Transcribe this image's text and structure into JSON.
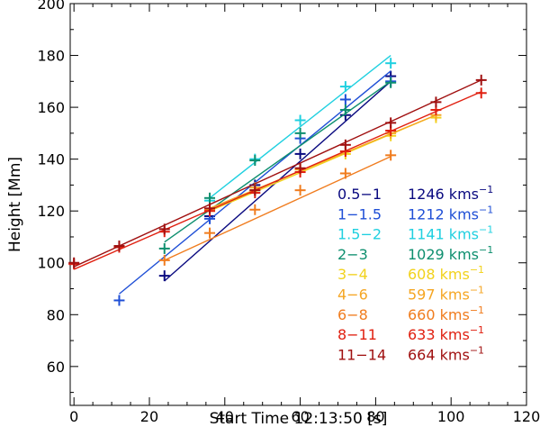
{
  "chart_data": {
    "type": "scatter",
    "xlabel": "Start Time 12:13:50 [s]",
    "ylabel": "Height [Mm]",
    "xlim": [
      -1,
      120
    ],
    "ylim": [
      45,
      200
    ],
    "xticks": [
      0,
      20,
      40,
      60,
      80,
      100,
      120
    ],
    "yticks": [
      60,
      80,
      100,
      120,
      140,
      160,
      180,
      200
    ],
    "series": [
      {
        "name": "0.5−1",
        "speed": "1246 kms",
        "unit_exp": "−1",
        "color": "#0a0a80",
        "points": [
          [
            24,
            95
          ],
          [
            36,
            118
          ],
          [
            48,
            130
          ],
          [
            60,
            142
          ],
          [
            72,
            157
          ],
          [
            84,
            172
          ]
        ],
        "fit": [
          [
            24,
            93
          ],
          [
            84,
            170
          ]
        ]
      },
      {
        "name": "1−1.5",
        "speed": "1212 kms",
        "unit_exp": "−1",
        "color": "#1f4fd6",
        "points": [
          [
            12,
            85.5
          ],
          [
            36,
            117
          ],
          [
            48,
            128
          ],
          [
            60,
            148
          ],
          [
            72,
            163
          ],
          [
            84,
            170
          ]
        ],
        "fit": [
          [
            12,
            88
          ],
          [
            84,
            174
          ]
        ]
      },
      {
        "name": "1.5−2",
        "speed": "1141 kms",
        "unit_exp": "−1",
        "color": "#20d0e0",
        "points": [
          [
            36,
            124
          ],
          [
            48,
            140
          ],
          [
            60,
            155
          ],
          [
            72,
            168
          ],
          [
            84,
            177
          ]
        ],
        "fit": [
          [
            36,
            125
          ],
          [
            84,
            180
          ]
        ]
      },
      {
        "name": "2−3",
        "speed": "1029 kms",
        "unit_exp": "−1",
        "color": "#0e8f6f",
        "points": [
          [
            24,
            105.5
          ],
          [
            36,
            125
          ],
          [
            48,
            139.5
          ],
          [
            60,
            150
          ],
          [
            72,
            159
          ],
          [
            84,
            169.5
          ]
        ],
        "fit": [
          [
            24,
            108
          ],
          [
            84,
            170
          ]
        ]
      },
      {
        "name": "3−4",
        "speed": "608 kms",
        "unit_exp": "−1",
        "color": "#f2d21c",
        "points": [
          [
            36,
            120
          ],
          [
            48,
            128
          ],
          [
            60,
            136
          ],
          [
            72,
            142
          ],
          [
            84,
            149
          ],
          [
            96,
            156
          ]
        ],
        "fit": [
          [
            36,
            120
          ],
          [
            96,
            157
          ]
        ]
      },
      {
        "name": "4−6",
        "speed": "597 kms",
        "unit_exp": "−1",
        "color": "#f5a623",
        "points": [
          [
            36,
            120.5
          ],
          [
            48,
            129
          ],
          [
            60,
            136
          ],
          [
            72,
            143
          ],
          [
            84,
            150
          ],
          [
            96,
            157
          ]
        ],
        "fit": [
          [
            36,
            121
          ],
          [
            96,
            157
          ]
        ]
      },
      {
        "name": "6−8",
        "speed": "660 kms",
        "unit_exp": "−1",
        "color": "#f07c1e",
        "points": [
          [
            24,
            101
          ],
          [
            36,
            111.5
          ],
          [
            48,
            120.5
          ],
          [
            60,
            128
          ],
          [
            72,
            134.5
          ],
          [
            84,
            141.5
          ]
        ],
        "fit": [
          [
            24,
            101
          ],
          [
            84,
            141
          ]
        ]
      },
      {
        "name": "8−11",
        "speed": "633 kms",
        "unit_exp": "−1",
        "color": "#e02010",
        "points": [
          [
            0,
            99.5
          ],
          [
            12,
            106
          ],
          [
            24,
            112
          ],
          [
            36,
            120
          ],
          [
            48,
            127
          ],
          [
            60,
            135
          ],
          [
            72,
            143
          ],
          [
            84,
            151
          ],
          [
            96,
            159
          ],
          [
            108,
            165.5
          ]
        ],
        "fit": [
          [
            0,
            97.5
          ],
          [
            108,
            166
          ]
        ]
      },
      {
        "name": "11−14",
        "speed": "664 kms",
        "unit_exp": "−1",
        "color": "#a01010",
        "points": [
          [
            0,
            100
          ],
          [
            12,
            106.5
          ],
          [
            24,
            113
          ],
          [
            36,
            121
          ],
          [
            48,
            128
          ],
          [
            60,
            136.5
          ],
          [
            72,
            145.5
          ],
          [
            84,
            154
          ],
          [
            96,
            162
          ],
          [
            108,
            170.5
          ]
        ],
        "fit": [
          [
            0,
            98.5
          ],
          [
            108,
            170.5
          ]
        ]
      }
    ]
  }
}
